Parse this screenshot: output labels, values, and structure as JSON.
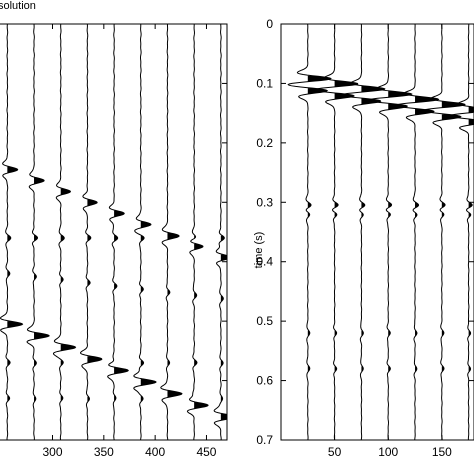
{
  "chart_data": [
    {
      "type": "line",
      "kind": "seismic-wiggle-gather",
      "title": "solution",
      "xlabel": "",
      "ylabel": "",
      "xlim": [
        243,
        470
      ],
      "ylim": [
        0.7,
        0.0
      ],
      "x_ticks": [
        "300",
        "350",
        "400",
        "450"
      ],
      "x_tick_values": [
        300,
        350,
        400,
        450
      ],
      "y_ticks": [],
      "grid": false,
      "trace_offsets": [
        256,
        282,
        308,
        334,
        360,
        386,
        412,
        438,
        464
      ],
      "events": [
        {
          "t0": 0.245,
          "slope": 0.00071,
          "amp": 1.0
        },
        {
          "t0": 0.36,
          "slope": 0.0,
          "amp": 0.35
        },
        {
          "t0": 0.42,
          "slope": 0.0002,
          "amp": 0.25
        },
        {
          "t0": 0.505,
          "slope": 0.00075,
          "amp": 1.5
        },
        {
          "t0": 0.57,
          "slope": 0.0,
          "amp": 0.25
        },
        {
          "t0": 0.63,
          "slope": 0.0,
          "amp": 0.2
        }
      ]
    },
    {
      "type": "line",
      "kind": "seismic-wiggle-gather",
      "title": "",
      "xlabel": "",
      "ylabel": "time (s)",
      "xlim": [
        0,
        180
      ],
      "ylim": [
        0.7,
        0.0
      ],
      "x_ticks": [
        "50",
        "100",
        "150"
      ],
      "x_tick_values": [
        50,
        100,
        150
      ],
      "y_ticks": [
        "0",
        "0.1",
        "0.2",
        "0.3",
        "0.4",
        "0.5",
        "0.6",
        "0.7"
      ],
      "y_tick_values": [
        0,
        0.1,
        0.2,
        0.3,
        0.4,
        0.5,
        0.6,
        0.7
      ],
      "grid": false,
      "trace_offsets": [
        25,
        50,
        75,
        100,
        125,
        150,
        175
      ],
      "events": [
        {
          "t0": 0.092,
          "slope": 0.00035,
          "amp": 3.0
        },
        {
          "t0": 0.112,
          "slope": 0.00035,
          "amp": 2.5
        },
        {
          "t0": 0.305,
          "slope": 0.0,
          "amp": 0.5
        },
        {
          "t0": 0.32,
          "slope": 0.0,
          "amp": 0.35
        },
        {
          "t0": 0.52,
          "slope": 0.0,
          "amp": 0.25
        },
        {
          "t0": 0.58,
          "slope": 0.0,
          "amp": 0.25
        }
      ]
    }
  ]
}
